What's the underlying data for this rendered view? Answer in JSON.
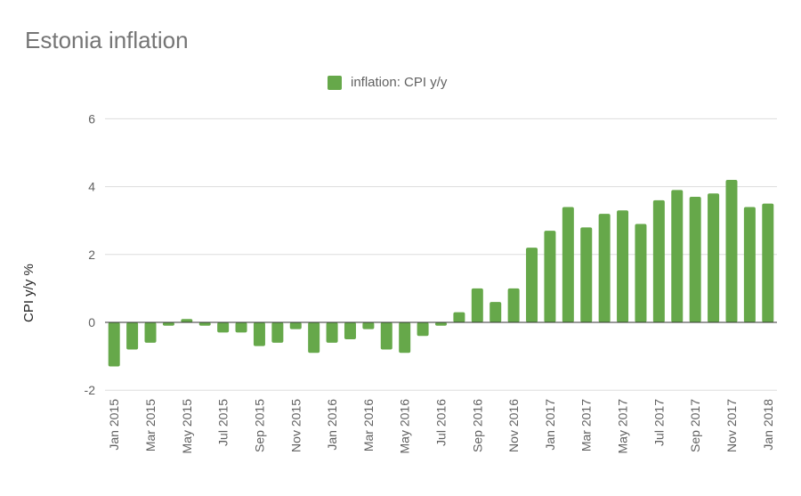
{
  "chart_data": {
    "type": "bar",
    "title": "Estonia inflation",
    "ylabel": "CPI y/y %",
    "xlabel": "",
    "ylim": [
      -2,
      6
    ],
    "yticks": [
      -2,
      0,
      2,
      4,
      6
    ],
    "grid": true,
    "legend_position": "top",
    "color": "#66a84a",
    "categories": [
      "Jan 2015",
      "Feb 2015",
      "Mar 2015",
      "Apr 2015",
      "May 2015",
      "Jun 2015",
      "Jul 2015",
      "Aug 2015",
      "Sep 2015",
      "Oct 2015",
      "Nov 2015",
      "Dec 2015",
      "Jan 2016",
      "Feb 2016",
      "Mar 2016",
      "Apr 2016",
      "May 2016",
      "Jun 2016",
      "Jul 2016",
      "Aug 2016",
      "Sep 2016",
      "Oct 2016",
      "Nov 2016",
      "Dec 2016",
      "Jan 2017",
      "Feb 2017",
      "Mar 2017",
      "Apr 2017",
      "May 2017",
      "Jun 2017",
      "Jul 2017",
      "Aug 2017",
      "Sep 2017",
      "Oct 2017",
      "Nov 2017",
      "Dec 2017",
      "Jan 2018"
    ],
    "series": [
      {
        "name": "inflation: CPI y/y",
        "values": [
          -1.3,
          -0.8,
          -0.6,
          -0.1,
          0.1,
          -0.1,
          -0.3,
          -0.3,
          -0.7,
          -0.6,
          -0.2,
          -0.9,
          -0.6,
          -0.5,
          -0.2,
          -0.8,
          -0.9,
          -0.4,
          -0.1,
          0.3,
          1.0,
          0.6,
          1.0,
          2.2,
          2.7,
          3.4,
          2.8,
          3.2,
          3.3,
          2.9,
          3.6,
          3.9,
          3.7,
          3.8,
          4.2,
          3.4,
          3.5
        ]
      }
    ]
  }
}
